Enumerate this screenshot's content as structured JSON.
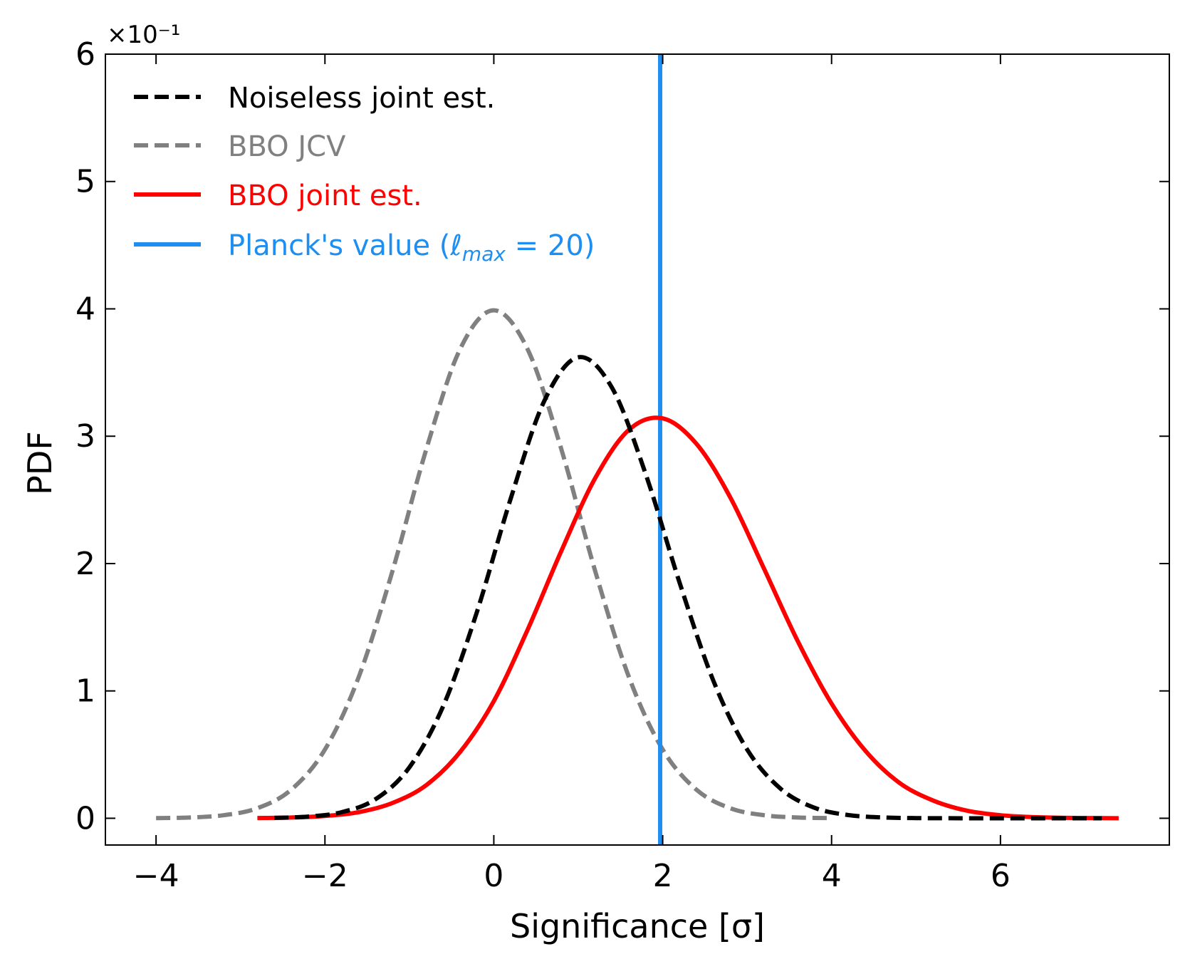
{
  "chart_data": {
    "type": "line",
    "xlabel": "Significance [σ]",
    "ylabel": "PDF",
    "y_multiplier_label": "×10⁻¹",
    "xlim": [
      -4.6,
      8.0
    ],
    "ylim": [
      -0.21,
      6.0
    ],
    "xticks": [
      -4,
      -2,
      0,
      2,
      4,
      6
    ],
    "xtick_labels": [
      "−4",
      "−2",
      "0",
      "2",
      "4",
      "6"
    ],
    "yticks": [
      0,
      1,
      2,
      3,
      4,
      5,
      6
    ],
    "ytick_labels": [
      "0",
      "1",
      "2",
      "3",
      "4",
      "5",
      "6"
    ],
    "grid": false,
    "legend_position": "top-left",
    "series": [
      {
        "name": "Noiseless joint est.",
        "style": "dashed",
        "color": "#000000",
        "x": [
          -2.6,
          -2.2,
          -1.8,
          -1.4,
          -1.0,
          -0.6,
          -0.2,
          0.2,
          0.6,
          1.0,
          1.4,
          1.8,
          2.2,
          2.6,
          3.0,
          3.4,
          3.8,
          4.2,
          4.6,
          5.0,
          5.4,
          5.8,
          6.2,
          6.6,
          7.0,
          7.2
        ],
        "y": [
          0.003,
          0.013,
          0.048,
          0.15,
          0.4,
          0.88,
          1.62,
          2.51,
          3.28,
          3.62,
          3.38,
          2.7,
          1.85,
          1.08,
          0.54,
          0.23,
          0.082,
          0.025,
          0.0065,
          0.0015,
          0.0003,
          5e-05,
          0.0,
          0.0,
          0.0,
          0.0
        ]
      },
      {
        "name": "BBO JCV",
        "style": "dashed",
        "color": "#808080",
        "x": [
          -4.0,
          -3.6,
          -3.2,
          -2.8,
          -2.4,
          -2.0,
          -1.6,
          -1.2,
          -0.8,
          -0.4,
          0.0,
          0.4,
          0.8,
          1.2,
          1.6,
          2.0,
          2.4,
          2.8,
          3.2,
          3.6,
          4.0
        ],
        "y": [
          0.0013,
          0.006,
          0.024,
          0.079,
          0.224,
          0.54,
          1.109,
          1.942,
          2.897,
          3.683,
          3.989,
          3.683,
          2.897,
          1.942,
          1.109,
          0.54,
          0.224,
          0.079,
          0.024,
          0.006,
          0.0013
        ]
      },
      {
        "name": "BBO joint est.",
        "style": "solid",
        "color": "#ff0000",
        "x": [
          -2.8,
          -2.4,
          -2.0,
          -1.6,
          -1.2,
          -0.8,
          -0.4,
          0.0,
          0.4,
          0.8,
          1.2,
          1.6,
          2.0,
          2.4,
          2.8,
          3.2,
          3.6,
          4.0,
          4.4,
          4.8,
          5.2,
          5.6,
          6.0,
          6.4,
          6.8,
          7.2,
          7.4
        ],
        "y": [
          0.002,
          0.006,
          0.018,
          0.048,
          0.12,
          0.26,
          0.52,
          0.92,
          1.48,
          2.1,
          2.67,
          3.05,
          3.14,
          2.94,
          2.52,
          1.96,
          1.39,
          0.9,
          0.53,
          0.28,
          0.14,
          0.06,
          0.024,
          0.009,
          0.003,
          0.001,
          0.0005
        ]
      },
      {
        "name": "Planck's value (ℓmax = 20)",
        "legend_label_main": "Planck's value (",
        "legend_label_ell": "ℓ",
        "legend_label_sub": "max",
        "legend_label_rest": " = 20)",
        "style": "vline",
        "color": "#1e8ff0",
        "x": 1.97
      }
    ]
  }
}
